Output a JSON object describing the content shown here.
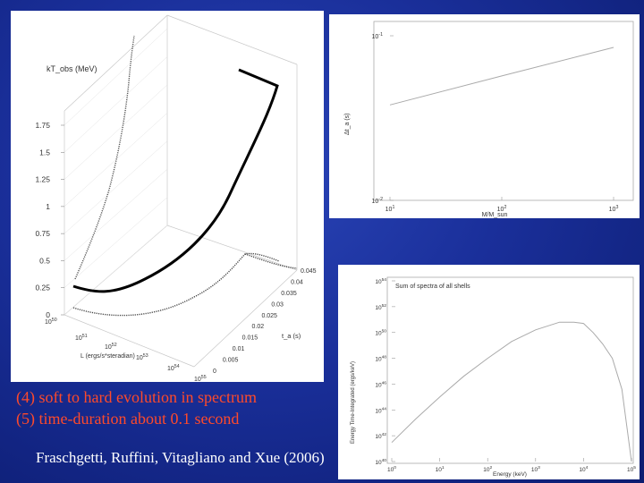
{
  "captions": {
    "line1": "(4) soft to hard evolution in spectrum",
    "line2": "(5) time-duration about 0.1 second",
    "authors": "Fraschgetti, Ruffini, Vitagliano and Xue (2006)"
  },
  "chart_data": [
    {
      "type": "line",
      "projection": "3d",
      "z_label": "kT_obs (MeV)",
      "z_ticks": [
        "1.75",
        "1.5",
        "1.25",
        "1",
        "0.75",
        "0.5",
        "0.25",
        "0"
      ],
      "x_label": "L (ergs/s*steradian)",
      "x_ticks": [
        "10^50",
        "10^51",
        "10^52",
        "10^53",
        "10^54",
        "10^55"
      ],
      "y_label": "t_a (s)",
      "y_ticks": [
        "0",
        "0.005",
        "0.01",
        "0.015",
        "0.02",
        "0.025",
        "0.03",
        "0.035",
        "0.04",
        "0.045"
      ],
      "colors": {
        "curve": "#000000",
        "projections": "#555555"
      }
    },
    {
      "type": "line",
      "x_label": "M/M_sun",
      "y_label": "Δt_a (s)",
      "x_ticks": [
        "10^1",
        "10^2",
        "10^3"
      ],
      "y_ticks": [
        "10^-1",
        "10^-2"
      ],
      "log_x": true,
      "log_y": true,
      "xlim": [
        10,
        1000
      ],
      "ylim": [
        0.01,
        0.1
      ],
      "series": [
        {
          "x": [
            10,
            100,
            1000
          ],
          "y": [
            0.038,
            0.057,
            0.085
          ]
        }
      ],
      "line_color": "#aaaaaa"
    },
    {
      "type": "line",
      "annotation": "Sum of spectra of all shells",
      "x_label": "Energy (keV)",
      "y_label": "Energy Time-Integrated (ergs/keV)",
      "x_ticks": [
        "10^0",
        "10^1",
        "10^2",
        "10^3",
        "10^4",
        "10^5"
      ],
      "y_ticks": [
        "10^54",
        "10^52",
        "10^50",
        "10^48",
        "10^46",
        "10^44",
        "10^42",
        "10^40"
      ],
      "log_x": true,
      "log_y": true,
      "xlim": [
        1,
        100000
      ],
      "ylim": [
        1e+40,
        1e+54
      ],
      "series": [
        {
          "x": [
            1,
            3.16,
            10,
            31.6,
            100,
            316,
            1000,
            3160,
            6300,
            10000,
            15800,
            25100,
            39800,
            63100,
            100000
          ],
          "y": [
            3e+41,
            2e+43,
            1e+45,
            4e+46,
            1e+48,
            2e+49,
            1.6e+50,
            6.3e+50,
            6.3e+50,
            5e+50,
            1e+50,
            1.3e+49,
            1e+48,
            4e+45,
            1e+40
          ]
        }
      ],
      "line_color": "#aaaaaa"
    }
  ]
}
